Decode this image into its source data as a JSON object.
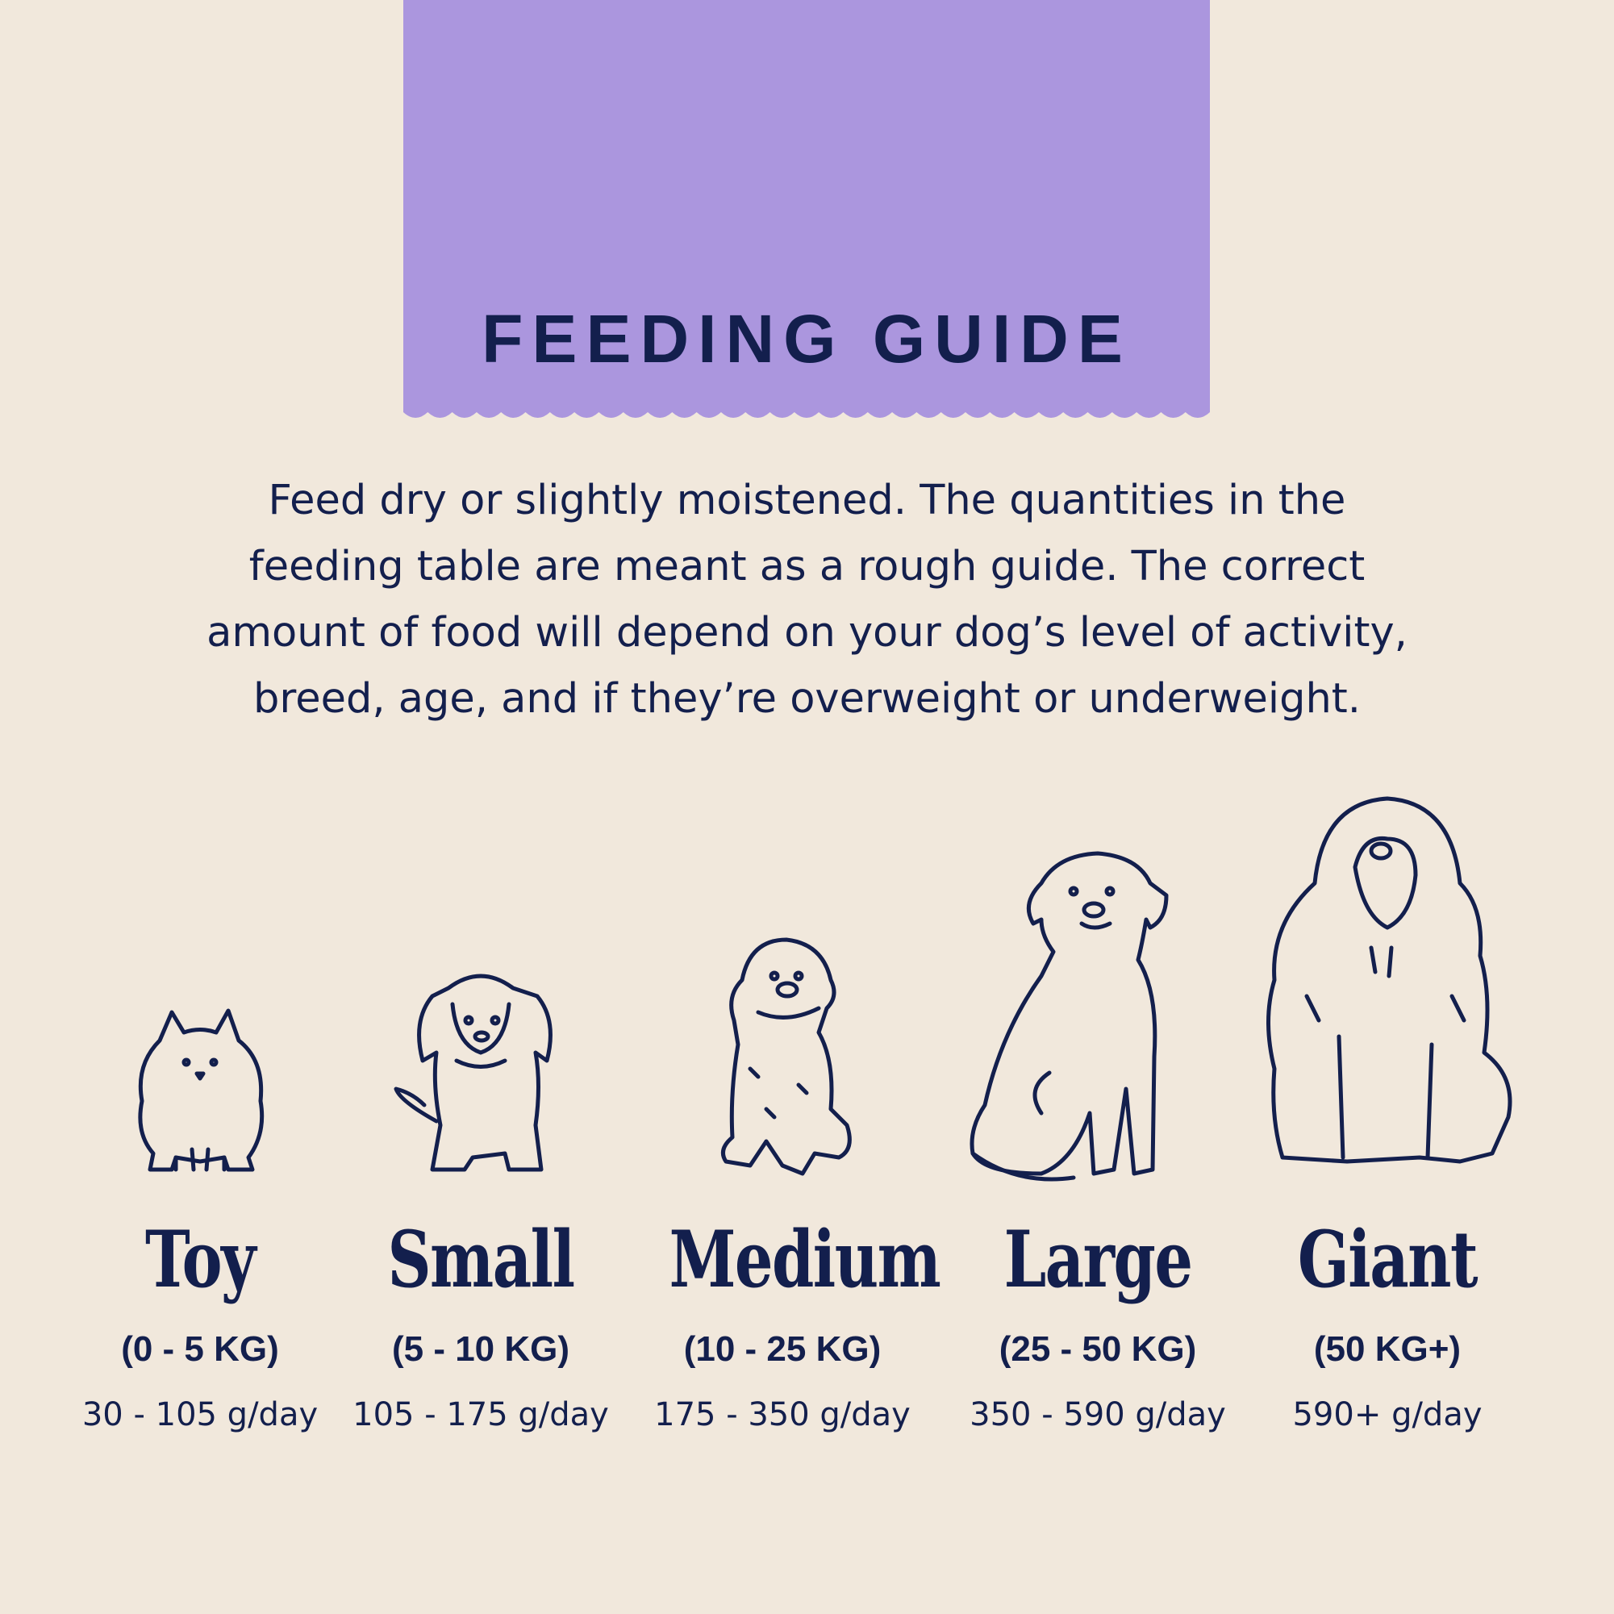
{
  "header": {
    "title": "FEEDING GUIDE"
  },
  "intro": {
    "lines": [
      "Feed dry or slightly moistened. The quantities in the",
      "feeding table are meant as a rough guide. The correct",
      "amount of food will depend on your dog’s level of activity,",
      "breed, age, and if they’re overweight or underweight."
    ]
  },
  "colors": {
    "background": "#f1e8dc",
    "banner": "#ab96de",
    "text": "#131f4d"
  },
  "sizes": [
    {
      "name": "Toy",
      "weight": "(0 - 5 KG)",
      "amount": "30 - 105 g/day",
      "icon": "pomeranian-dog-icon"
    },
    {
      "name": "Small",
      "weight": "(5 - 10 KG)",
      "amount": "105 - 175 g/day",
      "icon": "spaniel-dog-icon"
    },
    {
      "name": "Medium",
      "weight": "(10 - 25 KG)",
      "amount": "175 - 350 g/day",
      "icon": "doodle-dog-icon"
    },
    {
      "name": "Large",
      "weight": "(25 - 50 KG)",
      "amount": "350 - 590 g/day",
      "icon": "labrador-dog-icon"
    },
    {
      "name": "Giant",
      "weight": "(50 KG+)",
      "amount": "590+ g/day",
      "icon": "sheepdog-dog-icon"
    }
  ]
}
